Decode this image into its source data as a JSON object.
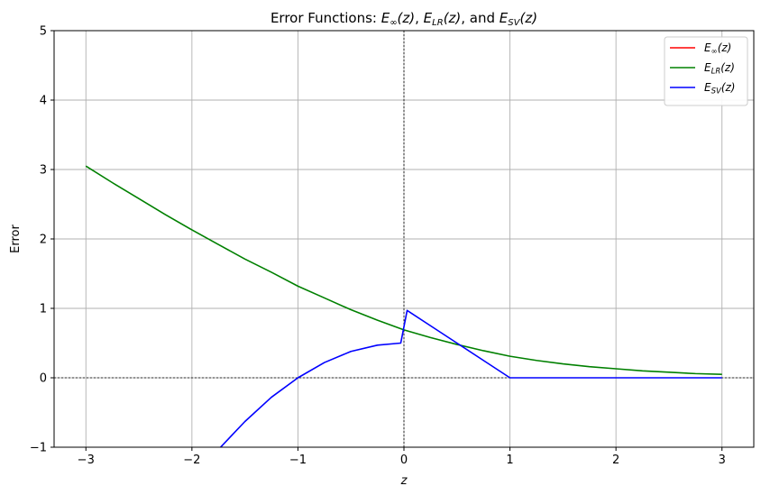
{
  "chart_data": {
    "type": "line",
    "title_prefix": "Error Functions: ",
    "title_parts": [
      {
        "base": "E",
        "sub": "∞",
        "arg": "(z)",
        "sep": ", "
      },
      {
        "base": "E",
        "sub": "LR",
        "arg": "(z)",
        "sep": ", and "
      },
      {
        "base": "E",
        "sub": "SV",
        "arg": "(z)",
        "sep": ""
      }
    ],
    "xlabel": "z",
    "ylabel": "Error",
    "xlim": [
      -3.3,
      3.3
    ],
    "ylim": [
      -1,
      5
    ],
    "xticks": [
      -3,
      -2,
      -1,
      0,
      1,
      2,
      3
    ],
    "xtick_labels": [
      "−3",
      "−2",
      "−1",
      "0",
      "1",
      "2",
      "3"
    ],
    "yticks": [
      -1,
      0,
      1,
      2,
      3,
      4,
      5
    ],
    "ytick_labels": [
      "−1",
      "0",
      "1",
      "2",
      "3",
      "4",
      "5"
    ],
    "grid": true,
    "legend_position": "top-right",
    "series": [
      {
        "name": "E∞(z)",
        "name_base": "E",
        "name_sub": "∞",
        "name_arg": "(z)",
        "color": "#ff0000",
        "x": [],
        "y": []
      },
      {
        "name": "ELR(z)",
        "name_base": "E",
        "name_sub": "LR",
        "name_arg": "(z)",
        "color": "#008000",
        "x": [
          -3,
          -2.75,
          -2.5,
          -2.25,
          -2,
          -1.75,
          -1.5,
          -1.25,
          -1,
          -0.75,
          -0.5,
          -0.25,
          0,
          0.25,
          0.5,
          0.75,
          1,
          1.25,
          1.5,
          1.75,
          2,
          2.25,
          2.5,
          2.75,
          3
        ],
        "y": [
          3.05,
          2.81,
          2.58,
          2.35,
          2.13,
          1.92,
          1.71,
          1.52,
          1.32,
          1.15,
          0.98,
          0.83,
          0.69,
          0.58,
          0.48,
          0.39,
          0.31,
          0.25,
          0.2,
          0.16,
          0.13,
          0.1,
          0.08,
          0.06,
          0.05
        ]
      },
      {
        "name": "ESV(z)",
        "name_base": "E",
        "name_sub": "SV",
        "name_arg": "(z)",
        "color": "#0000ff",
        "x": [
          -1.73,
          -1.5,
          -1.25,
          -1,
          -0.75,
          -0.5,
          -0.25,
          -0.03,
          0.03,
          0.25,
          0.5,
          0.75,
          1,
          1.5,
          2,
          2.5,
          3
        ],
        "y": [
          -1,
          -0.63,
          -0.28,
          0,
          0.22,
          0.38,
          0.47,
          0.5,
          0.97,
          0.75,
          0.5,
          0.25,
          0,
          0,
          0,
          0,
          0
        ]
      }
    ]
  }
}
